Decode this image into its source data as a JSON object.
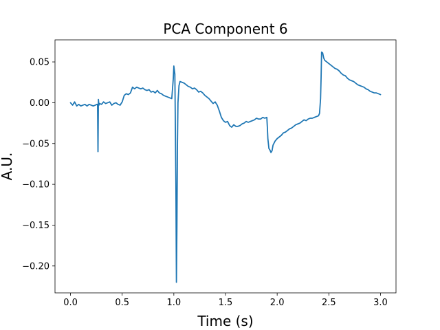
{
  "chart_data": {
    "type": "line",
    "title": "PCA Component 6",
    "xlabel": "Time (s)",
    "ylabel": "A.U.",
    "xlim": [
      -0.15,
      3.15
    ],
    "ylim": [
      -0.233,
      0.077
    ],
    "x_ticks": [
      0.0,
      0.5,
      1.0,
      1.5,
      2.0,
      2.5,
      3.0
    ],
    "x_tick_labels": [
      "0.0",
      "0.5",
      "1.0",
      "1.5",
      "2.0",
      "2.5",
      "3.0"
    ],
    "y_ticks": [
      0.05,
      0.0,
      -0.05,
      -0.1,
      -0.15,
      -0.2
    ],
    "y_tick_labels": [
      "0.05",
      "0.00",
      "−0.05",
      "−0.10",
      "−0.15",
      "−0.20"
    ],
    "grid": false,
    "legend": "none",
    "series": [
      {
        "color": "#1f77b4",
        "x": [
          0.0,
          0.02,
          0.04,
          0.06,
          0.08,
          0.1,
          0.12,
          0.14,
          0.16,
          0.18,
          0.2,
          0.22,
          0.24,
          0.255,
          0.262,
          0.266,
          0.27,
          0.275,
          0.28,
          0.3,
          0.32,
          0.34,
          0.36,
          0.38,
          0.4,
          0.42,
          0.44,
          0.46,
          0.48,
          0.5,
          0.52,
          0.54,
          0.56,
          0.58,
          0.6,
          0.62,
          0.64,
          0.66,
          0.68,
          0.7,
          0.72,
          0.74,
          0.76,
          0.78,
          0.8,
          0.82,
          0.84,
          0.86,
          0.88,
          0.9,
          0.92,
          0.94,
          0.96,
          0.98,
          0.995,
          1.0,
          1.01,
          1.02,
          1.025,
          1.03,
          1.035,
          1.04,
          1.05,
          1.06,
          1.08,
          1.1,
          1.12,
          1.14,
          1.16,
          1.18,
          1.2,
          1.22,
          1.24,
          1.26,
          1.28,
          1.3,
          1.32,
          1.34,
          1.36,
          1.38,
          1.4,
          1.42,
          1.44,
          1.46,
          1.48,
          1.5,
          1.52,
          1.54,
          1.56,
          1.58,
          1.6,
          1.62,
          1.64,
          1.66,
          1.68,
          1.7,
          1.72,
          1.74,
          1.76,
          1.78,
          1.8,
          1.82,
          1.84,
          1.86,
          1.88,
          1.9,
          1.905,
          1.91,
          1.915,
          1.92,
          1.93,
          1.94,
          1.95,
          1.96,
          1.98,
          2.0,
          2.02,
          2.04,
          2.06,
          2.08,
          2.1,
          2.12,
          2.14,
          2.16,
          2.18,
          2.2,
          2.22,
          2.24,
          2.26,
          2.28,
          2.3,
          2.32,
          2.34,
          2.36,
          2.38,
          2.4,
          2.41,
          2.42,
          2.425,
          2.43,
          2.44,
          2.45,
          2.46,
          2.48,
          2.5,
          2.52,
          2.54,
          2.56,
          2.58,
          2.6,
          2.62,
          2.64,
          2.66,
          2.68,
          2.7,
          2.72,
          2.74,
          2.76,
          2.78,
          2.8,
          2.82,
          2.84,
          2.86,
          2.88,
          2.9,
          2.92,
          2.94,
          2.96,
          2.98,
          3.0
        ],
        "y": [
          0.0,
          -0.003,
          0.001,
          -0.004,
          -0.002,
          -0.004,
          -0.003,
          -0.002,
          -0.004,
          -0.002,
          -0.003,
          -0.004,
          -0.003,
          -0.002,
          -0.002,
          -0.06,
          0.004,
          -0.003,
          -0.001,
          -0.002,
          0.001,
          -0.001,
          0.0,
          0.001,
          -0.003,
          -0.001,
          0.0,
          -0.002,
          -0.003,
          0.001,
          0.009,
          0.011,
          0.01,
          0.012,
          0.019,
          0.017,
          0.019,
          0.018,
          0.017,
          0.018,
          0.016,
          0.015,
          0.016,
          0.013,
          0.014,
          0.012,
          0.015,
          0.012,
          0.011,
          0.009,
          0.008,
          0.007,
          0.006,
          0.005,
          0.03,
          0.045,
          0.035,
          -0.1,
          -0.22,
          -0.15,
          -0.05,
          0.0,
          0.021,
          0.026,
          0.025,
          0.024,
          0.022,
          0.02,
          0.019,
          0.017,
          0.018,
          0.016,
          0.013,
          0.014,
          0.012,
          0.009,
          0.007,
          0.005,
          0.002,
          -0.001,
          0.001,
          -0.003,
          -0.01,
          -0.018,
          -0.022,
          -0.024,
          -0.023,
          -0.028,
          -0.03,
          -0.027,
          -0.029,
          -0.029,
          -0.028,
          -0.026,
          -0.025,
          -0.023,
          -0.024,
          -0.023,
          -0.022,
          -0.021,
          -0.019,
          -0.02,
          -0.02,
          -0.018,
          -0.019,
          -0.018,
          -0.03,
          -0.044,
          -0.05,
          -0.056,
          -0.058,
          -0.061,
          -0.059,
          -0.052,
          -0.047,
          -0.044,
          -0.042,
          -0.04,
          -0.037,
          -0.036,
          -0.034,
          -0.032,
          -0.031,
          -0.029,
          -0.027,
          -0.026,
          -0.025,
          -0.023,
          -0.021,
          -0.022,
          -0.02,
          -0.019,
          -0.019,
          -0.018,
          -0.017,
          -0.016,
          -0.013,
          0.005,
          0.03,
          0.062,
          0.061,
          0.055,
          0.052,
          0.05,
          0.048,
          0.046,
          0.044,
          0.042,
          0.041,
          0.039,
          0.036,
          0.034,
          0.033,
          0.03,
          0.028,
          0.027,
          0.026,
          0.024,
          0.022,
          0.021,
          0.02,
          0.019,
          0.017,
          0.016,
          0.014,
          0.013,
          0.012,
          0.012,
          0.011,
          0.01
        ]
      }
    ]
  }
}
